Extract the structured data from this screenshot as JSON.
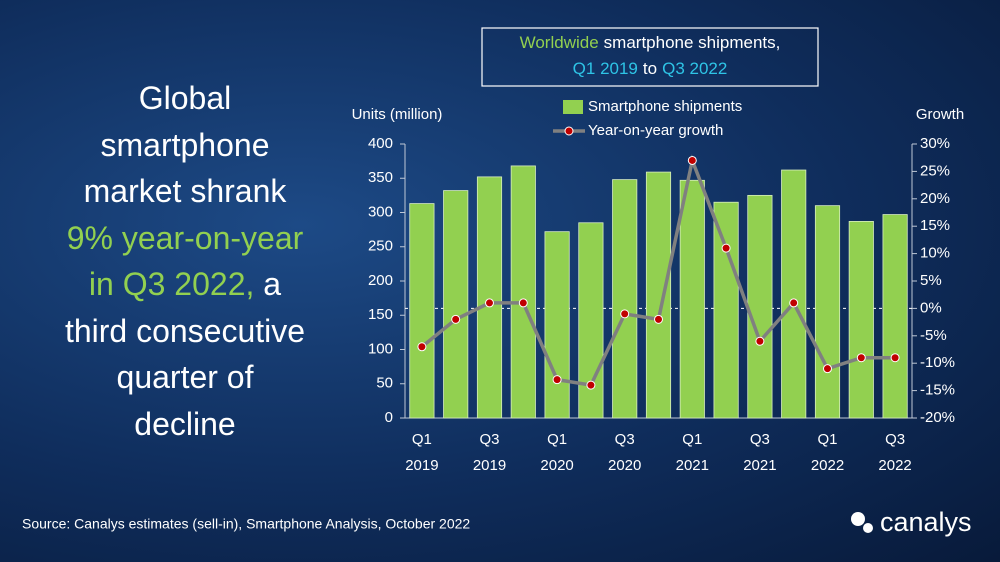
{
  "chart_data": {
    "type": "bar_line",
    "title_lines": [
      [
        {
          "text": "Worldwide",
          "color": "#92d050"
        },
        {
          "text": "smartphone shipments,",
          "color": "#ffffff"
        }
      ],
      [
        {
          "text": "Q1 2019",
          "color": "#2ec4e6"
        },
        {
          "text": "to",
          "color": "#ffffff"
        },
        {
          "text": "Q3 2022",
          "color": "#2ec4e6"
        }
      ]
    ],
    "y_label": "Units (million)",
    "y2_label": "Growth",
    "categories": [
      "Q1 2019",
      null,
      "Q3 2019",
      null,
      "Q1 2020",
      null,
      "Q3 2020",
      null,
      "Q1 2021",
      null,
      "Q3 2021",
      null,
      "Q1 2022",
      null,
      "Q3 2022"
    ],
    "series": [
      {
        "name": "Smartphone shipments",
        "color": "#92d050",
        "kind": "bar",
        "axis": "y",
        "values": [
          313,
          332,
          352,
          368,
          272,
          285,
          348,
          359,
          347,
          315,
          325,
          362,
          310,
          287,
          297
        ]
      },
      {
        "name": "Year-on-year growth",
        "color": "#808080",
        "marker_color": "#c00000",
        "kind": "line",
        "axis": "y2",
        "values": [
          -7,
          -2,
          1,
          1,
          -13,
          -14,
          -1,
          -2,
          27,
          11,
          -6,
          1,
          -11,
          -9,
          -9
        ]
      }
    ],
    "ylim": [
      0,
      400
    ],
    "yticks": [
      0,
      50,
      100,
      150,
      200,
      250,
      300,
      350,
      400
    ],
    "y2lim": [
      -20,
      30
    ],
    "y2ticks": [
      {
        "value": -20,
        "label": "-20%"
      },
      {
        "value": -15,
        "label": "-15%"
      },
      {
        "value": -10,
        "label": "-10%"
      },
      {
        "value": -5,
        "label": "-5%"
      },
      {
        "value": 0,
        "label": "0%"
      },
      {
        "value": 5,
        "label": "5%"
      },
      {
        "value": 10,
        "label": "10%"
      },
      {
        "value": 15,
        "label": "15%"
      },
      {
        "value": 20,
        "label": "20%"
      },
      {
        "value": 25,
        "label": "25%"
      },
      {
        "value": 30,
        "label": "30%"
      }
    ],
    "grid": false,
    "zero_line_y2": true
  },
  "headline_lines": [
    [
      {
        "text": "Global",
        "highlight": false
      }
    ],
    [
      {
        "text": "smartphone",
        "highlight": false
      }
    ],
    [
      {
        "text": "market shrank",
        "highlight": false
      }
    ],
    [
      {
        "text": "9% year-on-year",
        "highlight": true
      }
    ],
    [
      {
        "text": "in Q3 2022,",
        "highlight": true
      },
      {
        "text": "a",
        "highlight": false
      }
    ],
    [
      {
        "text": "third consecutive",
        "highlight": false
      }
    ],
    [
      {
        "text": "quarter of",
        "highlight": false
      }
    ],
    [
      {
        "text": "decline",
        "highlight": false
      }
    ]
  ],
  "source": "Source: Canalys estimates (sell-in), Smartphone Analysis, October 2022",
  "logo": "canalys"
}
